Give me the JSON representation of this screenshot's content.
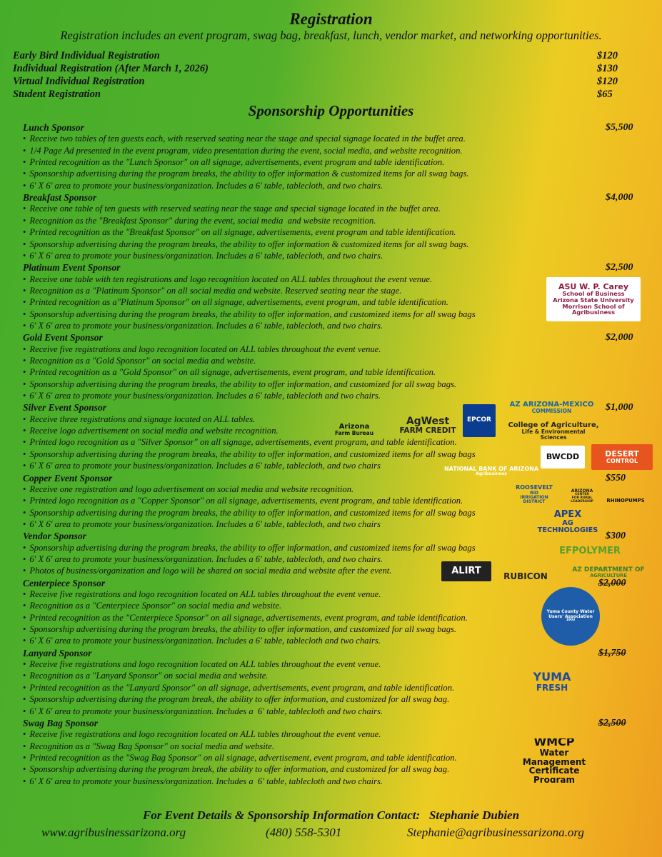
{
  "registration": {
    "title": "Registration",
    "intro": "Registration includes an event program, swag bag, breakfast, lunch, vendor market, and networking opportunities.",
    "items": [
      {
        "label": "Early Bird Individual Registration",
        "price": "$120"
      },
      {
        "label": "Individual Registration (After March 1, 2026)",
        "price": "$130"
      },
      {
        "label": "Virtual Individual Registration",
        "price": "$120"
      },
      {
        "label": "Student Registration",
        "price": "$65"
      }
    ]
  },
  "sponsorship": {
    "title": "Sponsorship Opportunities",
    "tiers": [
      {
        "name": "Lunch Sponsor",
        "price": "$5,500",
        "struck": false,
        "bullets": [
          "Receive two tables of ten guests each, with reserved seating near the stage and special signage located in the buffet area.",
          "1/4 Page Ad presented in the event program, video presentation during the event, social media, and website recognition.",
          "Printed recognition as the \"Lunch Sponsor\" on all signage, advertisements, event program and table identification.",
          "Sponsorship advertising during the program breaks, the ability to offer information & customized items for all swag bags.",
          "6' X 6' area to promote your business/organization. Includes a 6' table, tablecloth, and two chairs."
        ]
      },
      {
        "name": "Breakfast Sponsor",
        "price": "$4,000",
        "struck": false,
        "bullets": [
          "Receive one table of ten guests with reserved seating near the stage and special signage located in the buffet area.",
          "Recognition as the \"Breakfast Sponsor\" during the event, social media  and website recognition.",
          "Printed recognition as the \"Breakfast Sponsor\" on all signage, advertisements, event program and table identification.",
          "Sponsorship advertising during the program breaks, the ability to offer information & customized items for all swag bags.",
          "6' X 6' area to promote your business/organization. Includes a 6' table, tablecloth, and two chairs."
        ]
      },
      {
        "name": "Platinum Event Sponsor",
        "price": "$2,500",
        "struck": false,
        "bullets": [
          "Receive one table with ten registrations and logo recognition located on ALL tables throughout the event venue.",
          "Recognition as a \"Platinum Sponsor\" on all social media and website. Reserved seating near the stage.",
          "Printed recognition as a\"Platinum Sponsor\" on all signage, advertisements, event program, and table identification.",
          "Sponsorship advertising during the program breaks, the ability to offer information, and customized items for all swag bags",
          "6' X 6' area to promote your business/organization. Includes a 6' table, tablecloth, and two chairs."
        ]
      },
      {
        "name": "Gold Event Sponsor",
        "price": "$2,000",
        "struck": false,
        "bullets": [
          "Receive five registrations and logo recognition located on ALL tables throughout the event venue.",
          "Recognition as a \"Gold Sponsor\" on social media and website.",
          "Printed recognition as a \"Gold Sponsor\" on all signage, advertisements, event program, and table identification.",
          "Sponsorship advertising during the program breaks, the ability to offer information, and customized for all swag bags.",
          "6' X 6' area to promote your business/organization. Includes a 6' table, tablecloth and two chairs."
        ]
      },
      {
        "name": "Silver Event Sponsor",
        "price": "$1,000",
        "struck": false,
        "bullets": [
          "Receive three registrations and signage located on ALL tables.",
          "Receive logo advertisement on social media and website recognition.",
          "Printed logo recognition as a \"Silver Sponsor\" on all signage, advertisements, event program, and table identification.",
          "Sponsorship advertising during the program breaks, the ability to offer information, and customized items for all swag bags",
          "6' X 6' area to promote your business/organization. Includes a 6' table, tablecloth, and two chairs"
        ]
      },
      {
        "name": "Copper Event Sponsor",
        "price": "$550",
        "struck": false,
        "bullets": [
          "Receive one registration and logo advertisement on social media and website recognition.",
          "Printed logo recognition as a \"Copper Sponsor\" on all signage, advertisements, event program, and table identification.",
          "Sponsorship advertising during the program breaks, the ability to offer information, and customized items for all swag bags",
          "6' X 6' area to promote your business/organization. Includes a 6' table, tablecloth, and two chairs"
        ]
      },
      {
        "name": "Vendor Sponsor",
        "price": "$300",
        "struck": false,
        "bullets": [
          "Sponsorship advertising during the program breaks, the ability to offer information, and customized items for all swag bags",
          "6' X 6' area to promote your business/organization. Includes a 6' table, tablecloth, and two chairs.",
          "Photos of business/organization and logo will be shared on social media and website after the event."
        ]
      },
      {
        "name": "Centerpiece Sponsor",
        "price": "$2,000",
        "struck": true,
        "bullets": [
          "Receive five registrations and logo recognition located on ALL tables throughout the event venue.",
          "Recognition as a \"Centerpiece Sponsor\" on social media and website.",
          "Printed recognition as the \"Centerpiece Sponsor\" on all signage, advertisements, event program, and table identification.",
          "Sponsorship advertising during the program breaks, the ability to offer information, and customized for all swag bags.",
          "6' X 6' area to promote your business/organization. Includes a 6' table, tablecloth and two chairs."
        ]
      },
      {
        "name": "Lanyard Sponsor",
        "price": "$1,750",
        "struck": true,
        "bullets": [
          "Receive five registrations and logo recognition located on ALL tables throughout the event venue.",
          "Recognition as a \"Lanyard Sponsor\" on social media and website.",
          "Printed recognition as the \"Lanyard Sponsor\" on all signage, advertisements, event program, and table identification.",
          "Sponsorship advertising during the program break, the ability to offer information, and customized for all swag bag.",
          "6' X 6' area to promote your business/organization. Includes a  6' table, tablecloth and two chairs."
        ]
      },
      {
        "name": "Swag Bag Sponsor",
        "price": "$2,500",
        "struck": true,
        "bullets": [
          "Receive five registrations and logo recognition located on ALL tables throughout the event venue.",
          "Recognition as a \"Swag Bag Sponsor\" on social media and website.",
          "Printed recognition as the \"Swag Bag Sponsor\" on all signage, advertisement, event program, and table identification.",
          "Sponsorship advertising during the program break, the ability to offer information, and customized for all swag bag.",
          "6' X 6' area to promote your business/organization. Includes a  6' table, tablecloth and two chairs."
        ]
      }
    ]
  },
  "logos": [
    {
      "lines": [
        "ASU W. P. Carey",
        "School of Business",
        "Arizona State University",
        "Morrison School of Agribusiness"
      ]
    },
    {
      "lines": [
        "Arizona",
        "Farm Bureau"
      ]
    },
    {
      "lines": [
        "AgWest",
        "FARM CREDIT"
      ]
    },
    {
      "lines": [
        "EPCOR"
      ]
    },
    {
      "lines": [
        "AZ ARIZONA-MEXICO",
        "COMMISSION"
      ]
    },
    {
      "lines": [
        "College of Agriculture,",
        "Life & Environmental",
        "Sciences"
      ]
    },
    {
      "lines": [
        "BWCDD"
      ]
    },
    {
      "lines": [
        "DESERT",
        "CONTROL"
      ]
    },
    {
      "lines": [
        "NATIONAL BANK OF ARIZONA",
        "Agribusiness"
      ]
    },
    {
      "lines": [
        "ROOSEVELT",
        "RID",
        "IRRIGATION DISTRICT"
      ]
    },
    {
      "lines": [
        "ARIZONA",
        "CENTER",
        "FOR RURAL",
        "LEADERSHIP"
      ]
    },
    {
      "lines": [
        "RHINOPUMPS"
      ]
    },
    {
      "lines": [
        "APEX",
        "AG TECHNOLOGIES"
      ]
    },
    {
      "lines": [
        "EFPOLYMER"
      ]
    },
    {
      "lines": [
        "ALIRT"
      ]
    },
    {
      "lines": [
        "RUBICON"
      ]
    },
    {
      "lines": [
        "AZ DEPARTMENT OF",
        "AGRICULTURE"
      ]
    },
    {
      "lines": [
        "Yuma County Water Users' Association",
        "1903"
      ]
    },
    {
      "lines": [
        "YUMA",
        "FRESH"
      ]
    },
    {
      "lines": [
        "WMCP",
        "Water Management Certificate Program"
      ]
    }
  ],
  "contact": {
    "heading": "For Event Details & Sponsorship Information Contact:",
    "name": "Stephanie Dubien",
    "website": "www.agribusinessarizona.org",
    "phone": "(480) 558-5301",
    "email": "Stephanie@agribusinessarizona.org"
  }
}
